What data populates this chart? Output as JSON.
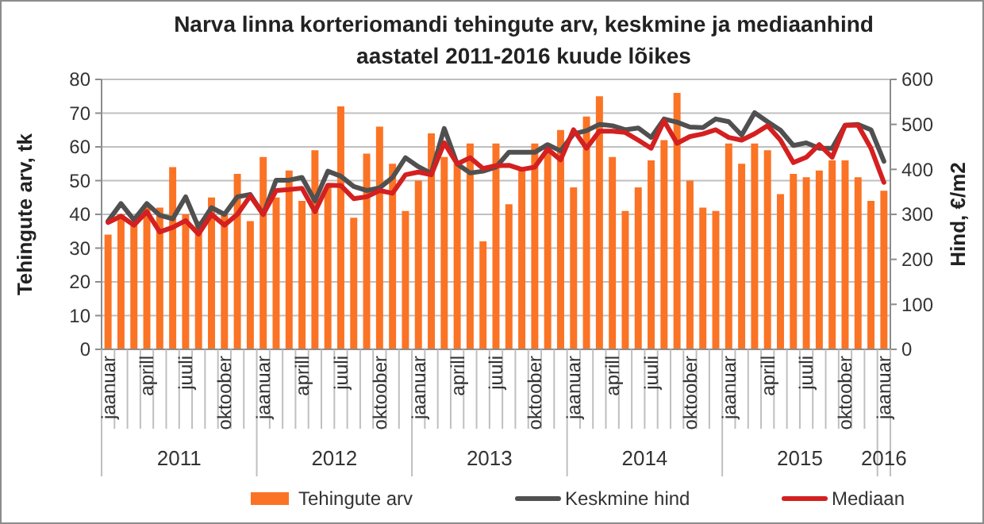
{
  "chart_data": {
    "type": "bar",
    "title": "Narva linna korteriomandi tehingute arv, keskmine ja mediaanhind\naastatel 2011-2016 kuude lõikes",
    "ylabel": "Tehingute arv, tk",
    "y2label": "Hind, €/m2",
    "categories": [
      "jaanuar",
      null,
      null,
      "aprill",
      null,
      null,
      "juuli",
      null,
      null,
      "oktoober",
      null,
      null,
      "jaanuar",
      null,
      null,
      "aprill",
      null,
      null,
      "juuli",
      null,
      null,
      "oktoober",
      null,
      null,
      "jaanuar",
      null,
      null,
      "aprill",
      null,
      null,
      "juuli",
      null,
      null,
      "oktoober",
      null,
      null,
      "jaanuar",
      null,
      null,
      "aprill",
      null,
      null,
      "juuli",
      null,
      null,
      "oktoober",
      null,
      null,
      "jaanuar",
      null,
      null,
      "aprill",
      null,
      null,
      "juuli",
      null,
      null,
      "oktoober",
      null,
      null,
      "jaanuar"
    ],
    "annotations": [
      "2011",
      "2012",
      "2013",
      "2014",
      "2015",
      "2016"
    ],
    "series": [
      {
        "name": "Tehingute arv",
        "color": "#fb7325",
        "values": [
          34,
          40,
          37,
          43,
          42,
          54,
          40,
          38,
          45,
          40,
          52,
          38,
          57,
          45,
          53,
          44,
          59,
          48,
          72,
          39,
          58,
          66,
          55,
          41,
          50,
          64,
          57,
          55,
          61,
          32,
          61,
          43,
          53,
          61,
          61,
          65,
          48,
          69,
          75,
          57,
          41,
          48,
          56,
          62,
          76,
          50,
          42,
          41,
          61,
          55,
          61,
          59,
          46,
          52,
          51,
          53,
          56,
          56,
          51,
          44,
          47
        ]
      },
      {
        "name": "Keskmine hind",
        "type": "line",
        "axis": "y2",
        "color": "#505050",
        "values": [
          285,
          324,
          288,
          324,
          298,
          290,
          339,
          271,
          315,
          300,
          339,
          344,
          300,
          376,
          376,
          382,
          330,
          396,
          385,
          362,
          353,
          359,
          382,
          426,
          406,
          391,
          491,
          412,
          392,
          396,
          405,
          438,
          438,
          438,
          455,
          441,
          479,
          486,
          500,
          497,
          488,
          492,
          471,
          512,
          505,
          494,
          493,
          512,
          506,
          476,
          526,
          506,
          487,
          453,
          459,
          447,
          447,
          498,
          500,
          488,
          418
        ]
      },
      {
        "name": "Mediaan",
        "type": "line",
        "axis": "y2",
        "color": "#d42020",
        "values": [
          282,
          296,
          276,
          306,
          261,
          271,
          286,
          256,
          300,
          276,
          300,
          341,
          300,
          353,
          355,
          358,
          306,
          365,
          364,
          335,
          339,
          353,
          347,
          388,
          394,
          388,
          459,
          412,
          426,
          402,
          408,
          409,
          400,
          405,
          445,
          421,
          488,
          447,
          485,
          485,
          482,
          465,
          447,
          508,
          458,
          473,
          479,
          488,
          471,
          465,
          479,
          497,
          465,
          415,
          427,
          455,
          427,
          498,
          498,
          447,
          371
        ]
      }
    ],
    "ylim": [
      0,
      80
    ],
    "yticks": [
      0,
      10,
      20,
      30,
      40,
      50,
      60,
      70,
      80
    ],
    "y2lim": [
      0,
      600
    ],
    "y2ticks": [
      0,
      100,
      200,
      300,
      400,
      500,
      600
    ],
    "grid": "y",
    "legend": "bottom"
  }
}
